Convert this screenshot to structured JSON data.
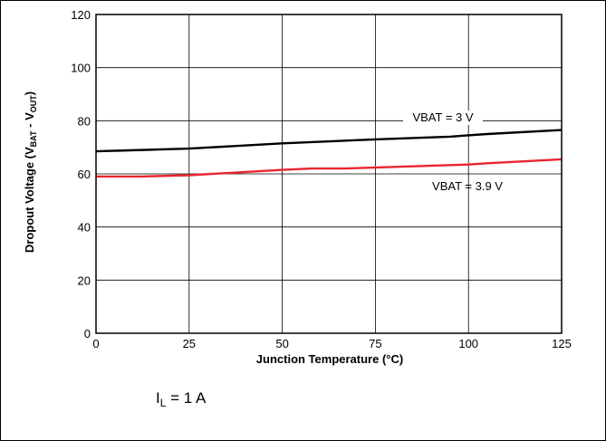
{
  "chart_data": {
    "type": "line",
    "xlabel": "Junction Temperature (°C)",
    "ylabel": {
      "prefix": "Dropout Voltage (V",
      "sub1": "BAT",
      "mid": " - V",
      "sub2": "OUT",
      "suffix": ")"
    },
    "xlim": [
      0,
      125
    ],
    "ylim": [
      0,
      120
    ],
    "x_ticks": [
      0,
      25,
      50,
      75,
      100,
      125
    ],
    "y_ticks": [
      0,
      20,
      40,
      60,
      80,
      100,
      120
    ],
    "grid": true,
    "series": [
      {
        "name": "VBAT = 3 V",
        "color": "#000000",
        "x": [
          0,
          25,
          50,
          75,
          95,
          105,
          125
        ],
        "y": [
          68.5,
          69.5,
          71.5,
          73,
          74,
          75,
          76.5
        ]
      },
      {
        "name": "VBAT = 3.9 V",
        "color": "#e8262f",
        "x": [
          0,
          12,
          25,
          50,
          58,
          67,
          100,
          105,
          125
        ],
        "y": [
          59,
          59,
          59.5,
          61.5,
          62,
          62,
          63.5,
          64,
          65.5
        ]
      }
    ],
    "annotation": {
      "prefix": "I",
      "sub": "L",
      "suffix": " = 1 A"
    }
  }
}
